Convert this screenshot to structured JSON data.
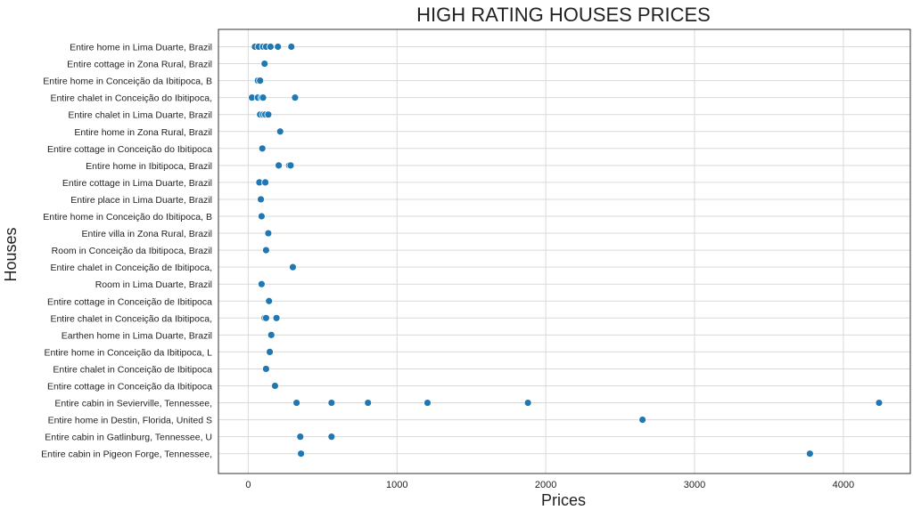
{
  "chart_data": {
    "type": "scatter",
    "title": "HIGH RATING HOUSES PRICES",
    "xlabel": "Prices",
    "ylabel": "Houses",
    "xlim": [
      -200,
      4450
    ],
    "xticks": [
      0,
      1000,
      2000,
      3000,
      4000
    ],
    "grid": true,
    "color": "#1f77b4",
    "categories": [
      "Entire home in Lima Duarte, Brazil",
      "Entire cottage in Zona Rural, Brazil",
      "Entire home in Conceição da Ibitipoca, B",
      "Entire chalet in Conceição do Ibitipoca,",
      "Entire chalet in Lima Duarte, Brazil",
      "Entire home in Zona Rural, Brazil",
      "Entire cottage in Conceição do Ibitipoca",
      "Entire home in Ibitipoca, Brazil",
      "Entire cottage in Lima Duarte, Brazil",
      "Entire place in Lima Duarte, Brazil",
      "Entire home in Conceição do Ibitipoca, B",
      "Entire villa in Zona Rural, Brazil",
      "Room in Conceição da Ibitipoca, Brazil",
      "Entire chalet in Conceição de Ibitipoca,",
      "Room in Lima Duarte, Brazil",
      "Entire cottage in Conceição de Ibitipoca",
      "Entire chalet in Conceição da Ibitipoca,",
      "Earthen home in Lima Duarte, Brazil",
      "Entire home in Conceição da Ibitipoca, L",
      "Entire chalet in Conceição de Ibitipoca",
      "Entire cottage in Conceição da Ibitipoca",
      "Entire cabin in Sevierville, Tennessee,",
      "Entire home in Destin, Florida, United S",
      "Entire cabin in Gatlinburg, Tennessee, U",
      "Entire cabin in Pigeon Forge, Tennessee,"
    ],
    "points": [
      {
        "y": 0,
        "x": 45
      },
      {
        "y": 0,
        "x": 70
      },
      {
        "y": 0,
        "x": 100
      },
      {
        "y": 0,
        "x": 120
      },
      {
        "y": 0,
        "x": 150
      },
      {
        "y": 0,
        "x": 200
      },
      {
        "y": 0,
        "x": 290
      },
      {
        "y": 1,
        "x": 110
      },
      {
        "y": 2,
        "x": 65
      },
      {
        "y": 2,
        "x": 80
      },
      {
        "y": 3,
        "x": 25
      },
      {
        "y": 3,
        "x": 65
      },
      {
        "y": 3,
        "x": 90
      },
      {
        "y": 3,
        "x": 100
      },
      {
        "y": 3,
        "x": 315
      },
      {
        "y": 4,
        "x": 80
      },
      {
        "y": 4,
        "x": 100
      },
      {
        "y": 4,
        "x": 115
      },
      {
        "y": 4,
        "x": 135
      },
      {
        "y": 5,
        "x": 215
      },
      {
        "y": 6,
        "x": 95
      },
      {
        "y": 7,
        "x": 205
      },
      {
        "y": 7,
        "x": 275
      },
      {
        "y": 7,
        "x": 285
      },
      {
        "y": 8,
        "x": 75
      },
      {
        "y": 8,
        "x": 115
      },
      {
        "y": 9,
        "x": 85
      },
      {
        "y": 10,
        "x": 90
      },
      {
        "y": 11,
        "x": 135
      },
      {
        "y": 12,
        "x": 120
      },
      {
        "y": 13,
        "x": 300
      },
      {
        "y": 14,
        "x": 90
      },
      {
        "y": 15,
        "x": 140
      },
      {
        "y": 16,
        "x": 110
      },
      {
        "y": 16,
        "x": 120
      },
      {
        "y": 16,
        "x": 190
      },
      {
        "y": 17,
        "x": 155
      },
      {
        "y": 18,
        "x": 145
      },
      {
        "y": 19,
        "x": 120
      },
      {
        "y": 20,
        "x": 180
      },
      {
        "y": 21,
        "x": 325
      },
      {
        "y": 21,
        "x": 560
      },
      {
        "y": 21,
        "x": 805
      },
      {
        "y": 21,
        "x": 1205
      },
      {
        "y": 21,
        "x": 1880
      },
      {
        "y": 21,
        "x": 4240
      },
      {
        "y": 22,
        "x": 2650
      },
      {
        "y": 23,
        "x": 350
      },
      {
        "y": 23,
        "x": 560
      },
      {
        "y": 24,
        "x": 355
      },
      {
        "y": 24,
        "x": 3775
      }
    ]
  }
}
